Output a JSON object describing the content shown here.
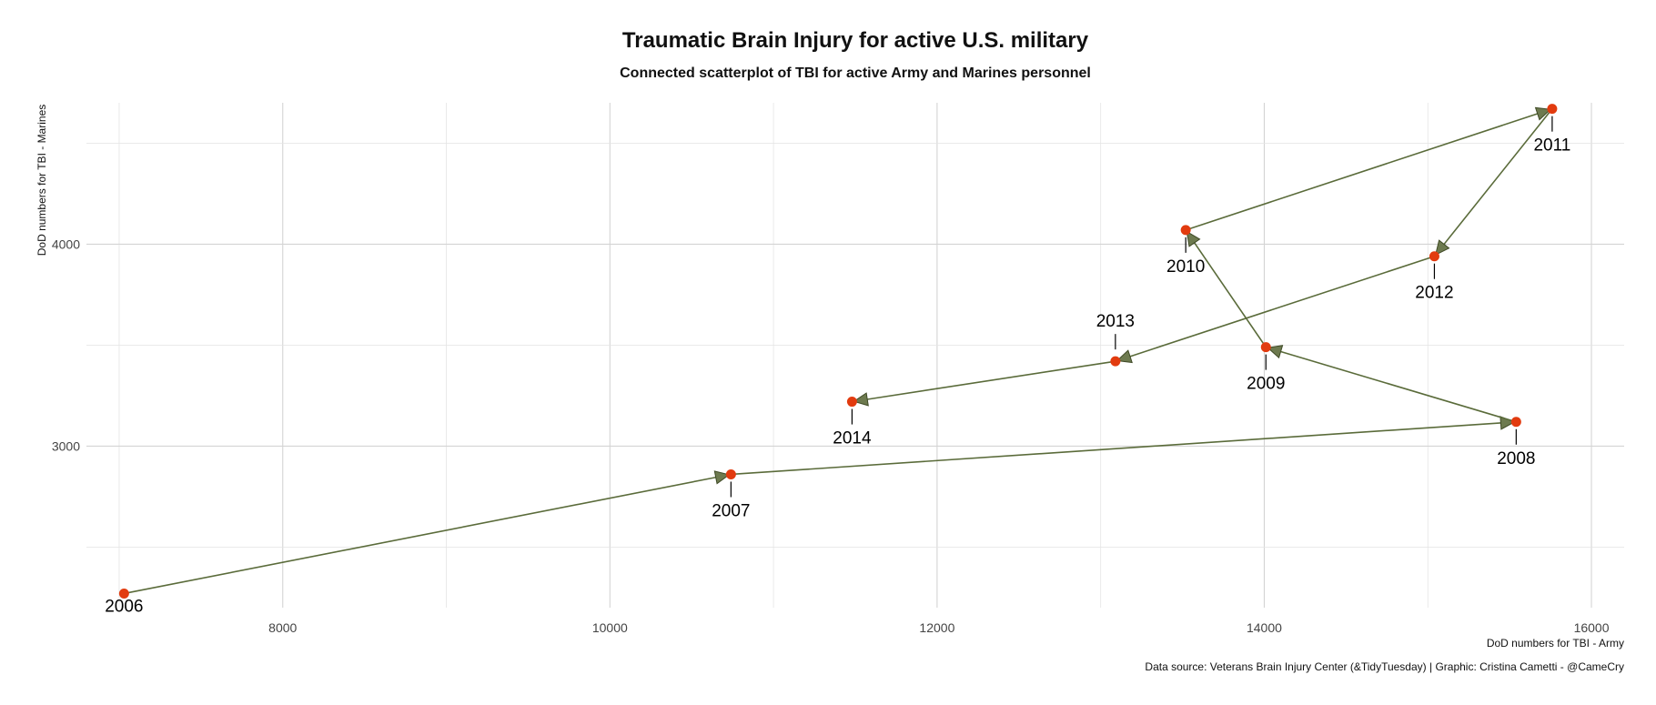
{
  "chart_data": {
    "type": "scatter",
    "connected": true,
    "title": "Traumatic Brain Injury for active U.S. military",
    "subtitle": "Connected scatterplot of TBI for active Army and Marines personnel",
    "xlabel": "DoD numbers for TBI - Army",
    "ylabel": "DoD numbers for TBI - Marines",
    "caption": "Data source: Veterans Brain Injury Center (&TidyTuesday) | Graphic: Cristina Cametti - @CameCry",
    "xlim": [
      6800,
      16200
    ],
    "ylim": [
      2200,
      4700
    ],
    "x_ticks": [
      8000,
      10000,
      12000,
      14000,
      16000
    ],
    "y_ticks": [
      3000,
      4000
    ],
    "grid": true,
    "colors": {
      "point": "#e23b0f",
      "line": "#5a6b3a",
      "arrow": "#6d7a4f"
    },
    "points": [
      {
        "label": "2006",
        "x": 7030,
        "y": 2270
      },
      {
        "label": "2007",
        "x": 10740,
        "y": 2860
      },
      {
        "label": "2008",
        "x": 15540,
        "y": 3120
      },
      {
        "label": "2009",
        "x": 14010,
        "y": 3490
      },
      {
        "label": "2010",
        "x": 13520,
        "y": 4070
      },
      {
        "label": "2011",
        "x": 15760,
        "y": 4670
      },
      {
        "label": "2012",
        "x": 15040,
        "y": 3940
      },
      {
        "label": "2013",
        "x": 13090,
        "y": 3420
      },
      {
        "label": "2014",
        "x": 11480,
        "y": 3220
      }
    ]
  }
}
